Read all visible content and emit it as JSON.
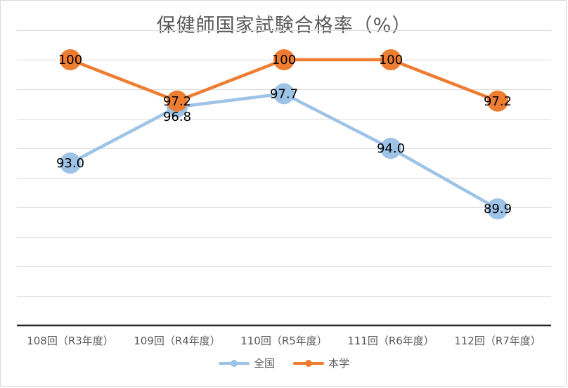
{
  "chart_data": {
    "type": "line",
    "title": "保健師国家試験合格率（%）",
    "categories": [
      "108回（R3年度）",
      "109回（R4年度）",
      "110回（R5年度）",
      "111回（R6年度）",
      "112回（R7年度）"
    ],
    "series": [
      {
        "name": "全国",
        "values": [
          93.0,
          96.8,
          97.7,
          94.0,
          89.9
        ],
        "labels": [
          "93.0",
          "96.8",
          "97.7",
          "94.0",
          "89.9"
        ],
        "color": "#9dc3e6",
        "label_position": "center"
      },
      {
        "name": "本学",
        "values": [
          100,
          97.2,
          100,
          100,
          97.2
        ],
        "labels": [
          "100",
          "97.2",
          "100",
          "100",
          "97.2"
        ],
        "color": "#ed7d31",
        "label_position": "center"
      }
    ],
    "ylim": [
      82,
      102
    ],
    "grid_step": 2,
    "grid": true,
    "y_tick_labels_shown": false,
    "legend_position": "bottom"
  }
}
